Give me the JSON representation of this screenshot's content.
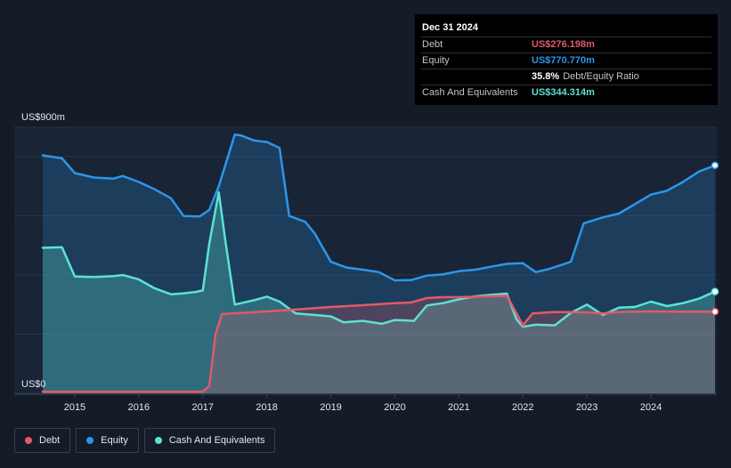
{
  "tooltip": {
    "date": "Dec 31 2024",
    "rows": [
      {
        "label": "Debt",
        "value": "US$276.198m",
        "color": "#e05a67"
      },
      {
        "label": "Equity",
        "value": "US$770.770m",
        "color": "#2d96e8"
      },
      {
        "label": "",
        "value": "35.8%",
        "suffix": "Debt/Equity Ratio",
        "color": "#ffffff"
      },
      {
        "label": "Cash And Equivalents",
        "value": "US$344.314m",
        "color": "#5ee1d2"
      }
    ]
  },
  "legend": [
    {
      "label": "Debt",
      "color": "#e05a67"
    },
    {
      "label": "Equity",
      "color": "#2d96e8"
    },
    {
      "label": "Cash And Equivalents",
      "color": "#5ee1d2"
    }
  ],
  "chart_data": {
    "type": "area",
    "ylim": [
      0,
      900
    ],
    "y_unit": "US$m",
    "y_tick_labels": [
      {
        "value": 900,
        "label": "US$900m"
      },
      {
        "value": 0,
        "label": "US$0"
      }
    ],
    "xlim": [
      2014.5,
      2025.0
    ],
    "x_ticks": [
      "2015",
      "2016",
      "2017",
      "2018",
      "2019",
      "2020",
      "2021",
      "2022",
      "2023",
      "2024"
    ],
    "grid": true,
    "legend_position": "bottom-left",
    "series": [
      {
        "name": "Equity",
        "color": "#2d96e8",
        "points": [
          [
            2014.5,
            805
          ],
          [
            2014.8,
            795
          ],
          [
            2015.0,
            745
          ],
          [
            2015.3,
            730
          ],
          [
            2015.6,
            726
          ],
          [
            2015.75,
            735
          ],
          [
            2016.0,
            715
          ],
          [
            2016.25,
            690
          ],
          [
            2016.5,
            660
          ],
          [
            2016.7,
            600
          ],
          [
            2016.95,
            598
          ],
          [
            2017.1,
            620
          ],
          [
            2017.25,
            700
          ],
          [
            2017.5,
            875
          ],
          [
            2017.6,
            872
          ],
          [
            2017.8,
            855
          ],
          [
            2018.0,
            850
          ],
          [
            2018.2,
            830
          ],
          [
            2018.35,
            600
          ],
          [
            2018.6,
            580
          ],
          [
            2018.75,
            540
          ],
          [
            2019.0,
            445
          ],
          [
            2019.25,
            425
          ],
          [
            2019.5,
            418
          ],
          [
            2019.75,
            410
          ],
          [
            2020.0,
            382
          ],
          [
            2020.25,
            383
          ],
          [
            2020.5,
            398
          ],
          [
            2020.75,
            402
          ],
          [
            2021.0,
            413
          ],
          [
            2021.25,
            418
          ],
          [
            2021.5,
            428
          ],
          [
            2021.75,
            438
          ],
          [
            2022.0,
            440
          ],
          [
            2022.2,
            410
          ],
          [
            2022.4,
            420
          ],
          [
            2022.75,
            445
          ],
          [
            2022.95,
            575
          ],
          [
            2023.25,
            595
          ],
          [
            2023.5,
            608
          ],
          [
            2023.75,
            640
          ],
          [
            2024.0,
            672
          ],
          [
            2024.25,
            685
          ],
          [
            2024.5,
            715
          ],
          [
            2024.75,
            750
          ],
          [
            2025.0,
            771
          ]
        ]
      },
      {
        "name": "Cash And Equivalents",
        "color": "#5ee1d2",
        "points": [
          [
            2014.5,
            492
          ],
          [
            2014.8,
            494
          ],
          [
            2015.0,
            395
          ],
          [
            2015.3,
            393
          ],
          [
            2015.6,
            396
          ],
          [
            2015.75,
            400
          ],
          [
            2016.0,
            385
          ],
          [
            2016.25,
            355
          ],
          [
            2016.5,
            335
          ],
          [
            2016.7,
            338
          ],
          [
            2016.9,
            343
          ],
          [
            2017.0,
            348
          ],
          [
            2017.1,
            505
          ],
          [
            2017.25,
            680
          ],
          [
            2017.35,
            520
          ],
          [
            2017.5,
            300
          ],
          [
            2017.6,
            305
          ],
          [
            2017.8,
            315
          ],
          [
            2018.0,
            327
          ],
          [
            2018.2,
            310
          ],
          [
            2018.45,
            270
          ],
          [
            2018.75,
            265
          ],
          [
            2019.0,
            260
          ],
          [
            2019.2,
            240
          ],
          [
            2019.5,
            245
          ],
          [
            2019.8,
            235
          ],
          [
            2020.0,
            248
          ],
          [
            2020.3,
            245
          ],
          [
            2020.5,
            297
          ],
          [
            2020.75,
            305
          ],
          [
            2021.0,
            318
          ],
          [
            2021.25,
            328
          ],
          [
            2021.5,
            333
          ],
          [
            2021.75,
            337
          ],
          [
            2021.9,
            250
          ],
          [
            2022.0,
            225
          ],
          [
            2022.2,
            232
          ],
          [
            2022.5,
            230
          ],
          [
            2022.75,
            272
          ],
          [
            2023.0,
            300
          ],
          [
            2023.25,
            265
          ],
          [
            2023.5,
            290
          ],
          [
            2023.75,
            292
          ],
          [
            2024.0,
            310
          ],
          [
            2024.25,
            295
          ],
          [
            2024.5,
            305
          ],
          [
            2024.75,
            320
          ],
          [
            2025.0,
            344
          ]
        ]
      },
      {
        "name": "Debt",
        "color": "#e05a67",
        "points": [
          [
            2014.5,
            5
          ],
          [
            2015.0,
            5
          ],
          [
            2016.0,
            5
          ],
          [
            2017.0,
            5
          ],
          [
            2017.1,
            25
          ],
          [
            2017.2,
            200
          ],
          [
            2017.3,
            268
          ],
          [
            2018.0,
            277
          ],
          [
            2018.5,
            284
          ],
          [
            2019.0,
            292
          ],
          [
            2019.5,
            298
          ],
          [
            2020.0,
            305
          ],
          [
            2020.25,
            307
          ],
          [
            2020.5,
            322
          ],
          [
            2020.75,
            325
          ],
          [
            2021.0,
            325
          ],
          [
            2021.5,
            328
          ],
          [
            2021.75,
            330
          ],
          [
            2022.0,
            230
          ],
          [
            2022.15,
            270
          ],
          [
            2022.5,
            275
          ],
          [
            2023.0,
            274
          ],
          [
            2023.25,
            270
          ],
          [
            2023.5,
            275
          ],
          [
            2024.0,
            277
          ],
          [
            2024.5,
            276
          ],
          [
            2025.0,
            276
          ]
        ]
      }
    ]
  }
}
